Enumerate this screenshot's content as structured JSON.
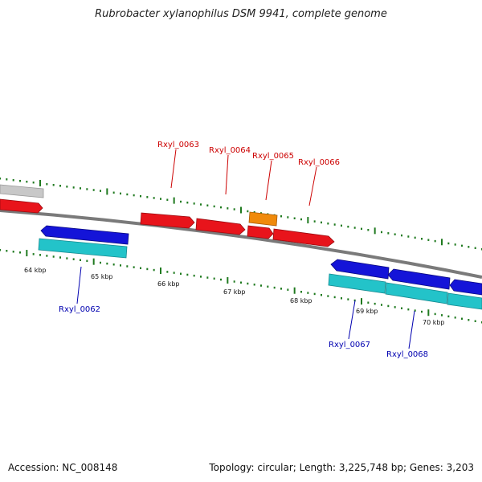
{
  "title": "Rubrobacter xylanophilus DSM 9941, complete genome",
  "footer": {
    "accession": "Accession: NC_008148",
    "summary": "Topology: circular; Length: 3,225,748 bp; Genes: 3,203"
  },
  "colors": {
    "backbone": "#7a7a7a",
    "tick": "#1f7a1f",
    "forward_gene": "#e8141b",
    "forward_gene_alt": "#f08a0b",
    "reverse_gene": "#1414d8",
    "reverse_rna_track": "#23c3c9",
    "partial_gene": "#c8c8c8",
    "forward_label": "#cc0000",
    "reverse_label": "#0000b0"
  },
  "ticks": [
    {
      "label": "64 kbp"
    },
    {
      "label": "65 kbp"
    },
    {
      "label": "66 kbp"
    },
    {
      "label": "67 kbp"
    },
    {
      "label": "68 kbp"
    },
    {
      "label": "69 kbp"
    },
    {
      "label": "70 kbp"
    }
  ],
  "genes_forward": [
    {
      "label": "Rxyl_0063"
    },
    {
      "label": "Rxyl_0064"
    },
    {
      "label": "Rxyl_0065"
    },
    {
      "label": "Rxyl_0066"
    }
  ],
  "genes_reverse": [
    {
      "label": "Rxyl_0062"
    },
    {
      "label": "Rxyl_0067"
    },
    {
      "label": "Rxyl_0068"
    }
  ]
}
